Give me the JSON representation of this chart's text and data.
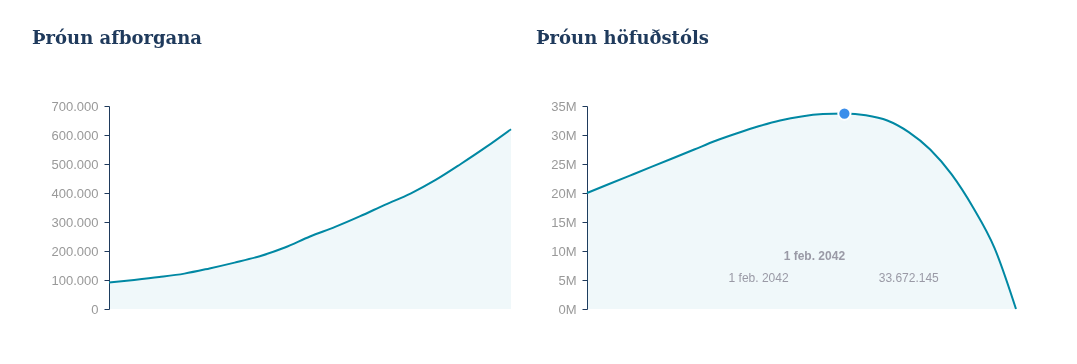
{
  "chart_data": [
    {
      "type": "area",
      "title": "Þróun afborgana",
      "categories": [
        null,
        null,
        null,
        null,
        null,
        null,
        null,
        null,
        null,
        null,
        null,
        null,
        null,
        null,
        null,
        null,
        null
      ],
      "tick_labels": "y",
      "series": [
        {
          "color": "#0088a3",
          "values": [
            91000,
            100000,
            110000,
            122000,
            140000,
            160000,
            182000,
            212000,
            250000,
            283000,
            320000,
            360000,
            398000,
            445000,
            500000,
            558000,
            620000
          ]
        }
      ],
      "ylim": [
        0,
        700000
      ],
      "yticks": [
        {
          "value": 0,
          "label": "0"
        },
        {
          "value": 100000,
          "label": "100.000"
        },
        {
          "value": 200000,
          "label": "200.000"
        },
        {
          "value": 300000,
          "label": "300.000"
        },
        {
          "value": 400000,
          "label": "400.000"
        },
        {
          "value": 500000,
          "label": "500.000"
        },
        {
          "value": 600000,
          "label": "600.000"
        },
        {
          "value": 700000,
          "label": "700.000"
        }
      ]
    },
    {
      "type": "area",
      "title": "Þróun höfuðstóls",
      "categories": [
        null,
        null,
        null,
        null,
        null,
        null,
        null,
        null,
        null,
        null,
        null,
        null,
        null,
        null,
        null,
        null,
        null,
        null,
        null,
        null,
        null
      ],
      "tick_labels": "y",
      "series": [
        {
          "color": "#0088a3",
          "values": [
            20.0,
            21.5,
            23.0,
            24.5,
            26.0,
            27.5,
            29.0,
            30.3,
            31.5,
            32.5,
            33.2,
            33.6,
            33.7,
            33.4,
            32.5,
            30.5,
            27.5,
            23.2,
            17.5,
            10.5,
            0
          ]
        },
        {
          "type": "scatter",
          "color": "#3b8eea",
          "values": [
            null,
            null,
            null,
            null,
            null,
            null,
            null,
            null,
            null,
            null,
            null,
            null,
            33.7,
            null,
            null,
            null,
            null,
            null,
            null,
            null,
            null
          ]
        }
      ],
      "ylim": [
        0,
        35
      ],
      "yticks": [
        {
          "value": 0,
          "label": "0M"
        },
        {
          "value": 5,
          "label": "5M"
        },
        {
          "value": 10,
          "label": "10M"
        },
        {
          "value": 15,
          "label": "15M"
        },
        {
          "value": 20,
          "label": "20M"
        },
        {
          "value": 25,
          "label": "25M"
        },
        {
          "value": 30,
          "label": "30M"
        },
        {
          "value": 35,
          "label": "35M"
        }
      ],
      "annotations": [
        "1 feb. 2042",
        "1 feb. 2042",
        "33.672.145"
      ]
    }
  ]
}
